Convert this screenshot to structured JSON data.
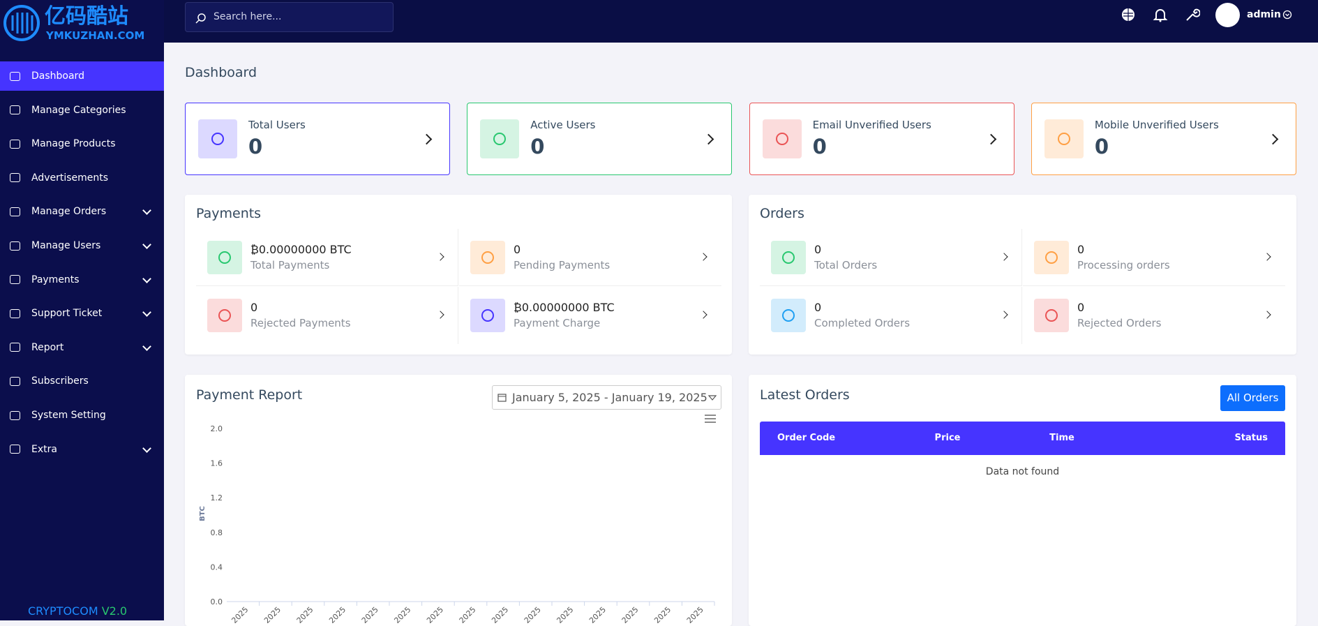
{
  "sidebar": {
    "logo_title": "亿码酷站",
    "logo_subtitle": "YMKUZHAN.COM",
    "menu": [
      {
        "label": "Dashboard",
        "active": true,
        "has_submenu": false
      },
      {
        "label": "Manage Categories",
        "active": false,
        "has_submenu": false
      },
      {
        "label": "Manage Products",
        "active": false,
        "has_submenu": false
      },
      {
        "label": "Advertisements",
        "active": false,
        "has_submenu": false
      },
      {
        "label": "Manage Orders",
        "active": false,
        "has_submenu": true
      },
      {
        "label": "Manage Users",
        "active": false,
        "has_submenu": true
      },
      {
        "label": "Payments",
        "active": false,
        "has_submenu": true
      },
      {
        "label": "Support Ticket",
        "active": false,
        "has_submenu": true
      },
      {
        "label": "Report",
        "active": false,
        "has_submenu": true
      },
      {
        "label": "Subscribers",
        "active": false,
        "has_submenu": false
      },
      {
        "label": "System Setting",
        "active": false,
        "has_submenu": false
      },
      {
        "label": "Extra",
        "active": false,
        "has_submenu": true
      }
    ],
    "footer_brand": "CRYPTOCOM",
    "footer_version": "V2.0"
  },
  "topbar": {
    "search_placeholder": "Search here...",
    "user": "admin"
  },
  "page_title": "Dashboard",
  "cards": [
    {
      "label": "Total Users",
      "value": 0,
      "color": "#4634ff",
      "bg": "#dcd9ff"
    },
    {
      "label": "Active Users",
      "value": 0,
      "color": "#28c76f",
      "bg": "#d5f4e3"
    },
    {
      "label": "Email Unverified Users",
      "value": 0,
      "color": "#ea5455",
      "bg": "#fbdcdc"
    },
    {
      "label": "Mobile Unverified Users",
      "value": 0,
      "color": "#ff9f43",
      "bg": "#ffebd8"
    }
  ],
  "payments": {
    "title": "Payments",
    "items": [
      {
        "value": "₿0.00000000 BTC",
        "label": "Total Payments",
        "color": "#28c76f",
        "bg": "#d5f4e3"
      },
      {
        "value": 0,
        "label": "Pending Payments",
        "color": "#ff9f43",
        "bg": "#ffebd8"
      },
      {
        "value": 0,
        "label": "Rejected Payments",
        "color": "#ea5455",
        "bg": "#fbdcdc"
      },
      {
        "value": "₿0.00000000 BTC",
        "label": "Payment Charge",
        "color": "#4634ff",
        "bg": "#dcd9ff"
      }
    ]
  },
  "orders": {
    "title": "Orders",
    "items": [
      {
        "value": 0,
        "label": "Total Orders",
        "color": "#28c76f",
        "bg": "#d5f4e3"
      },
      {
        "value": 0,
        "label": "Processing orders",
        "color": "#ff9f43",
        "bg": "#ffebd8"
      },
      {
        "value": 0,
        "label": "Completed Orders",
        "color": "#1e9ff2",
        "bg": "#d2ecfc"
      },
      {
        "value": 0,
        "label": "Rejected Orders",
        "color": "#ea5455",
        "bg": "#fbdcdc"
      }
    ]
  },
  "payment_report": {
    "title": "Payment Report",
    "date_range": "January 5, 2025 - January 19, 2025"
  },
  "chart_data": {
    "type": "line",
    "ylabel": "BTC",
    "ylim": [
      0,
      2
    ],
    "yticks": [
      {
        "value": 0,
        "label": "0.0"
      },
      {
        "value": 0.4,
        "label": "0.4"
      },
      {
        "value": 0.8,
        "label": "0.8"
      },
      {
        "value": 1.2,
        "label": "1.2"
      },
      {
        "value": 1.6,
        "label": "1.6"
      },
      {
        "value": 2,
        "label": "2.0"
      }
    ],
    "categories": [
      "2025",
      "2025",
      "2025",
      "2025",
      "2025",
      "2025",
      "2025",
      "2025",
      "2025",
      "2025",
      "2025",
      "2025",
      "2025",
      "2025",
      "2025"
    ]
  },
  "latest_orders": {
    "title": "Latest Orders",
    "button": "All Orders",
    "columns": [
      "Order Code",
      "Price",
      "Time",
      "Status"
    ],
    "empty_message": "Data not found"
  }
}
